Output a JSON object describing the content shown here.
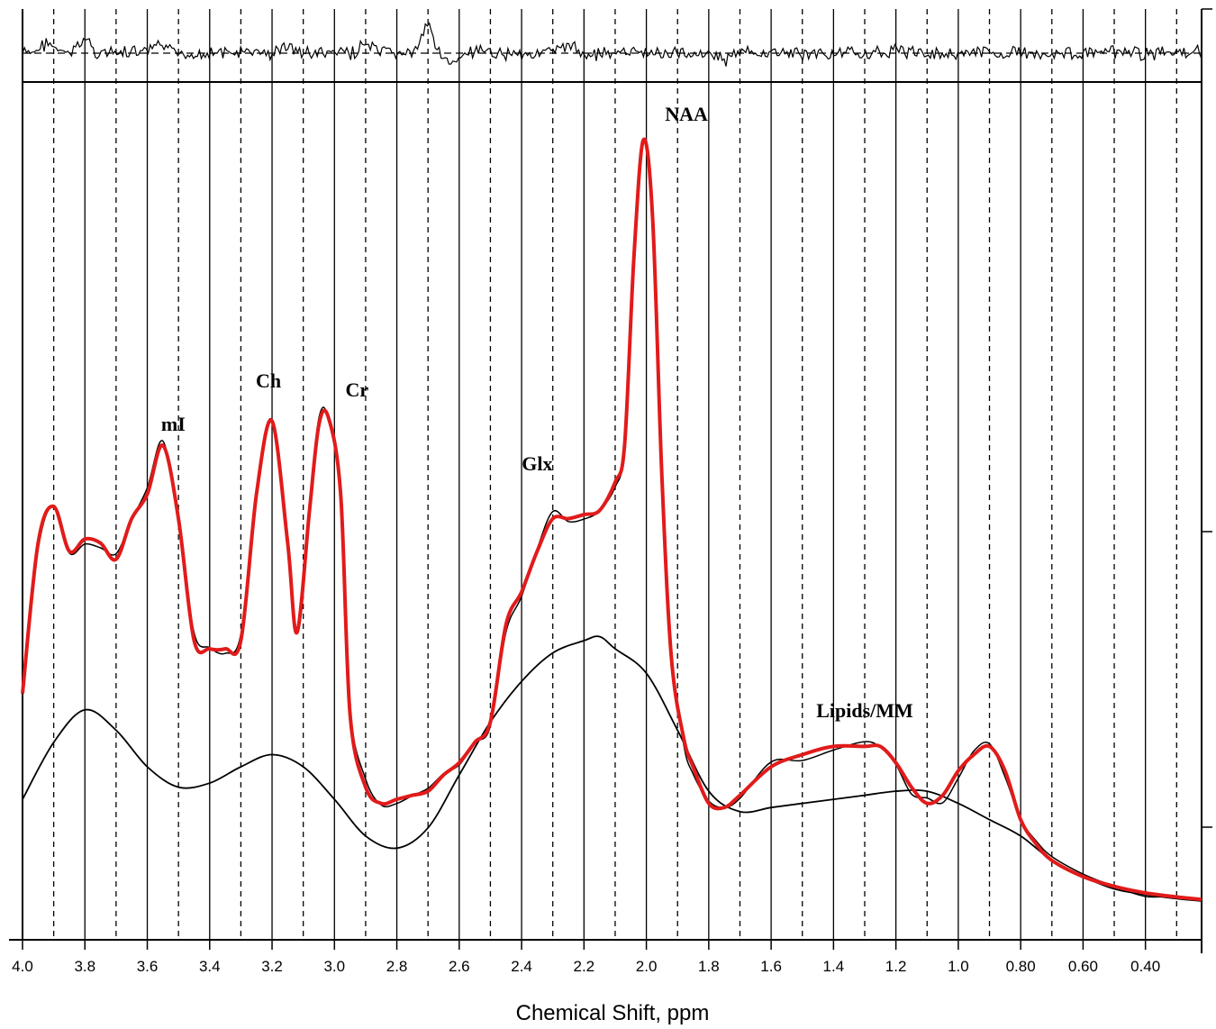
{
  "chart_data": {
    "type": "line",
    "title": "",
    "xlabel": "Chemical Shift, ppm",
    "ylabel": "",
    "xlim": [
      4.0,
      0.22
    ],
    "x_reversed": true,
    "grid": "vertical solid lines every 0.2 ppm, dashed lines at odd 0.1 ppm",
    "x_ticks": [
      4.0,
      3.8,
      3.6,
      3.4,
      3.2,
      3.0,
      2.8,
      2.6,
      2.4,
      2.2,
      2.0,
      1.8,
      1.6,
      1.4,
      1.2,
      1.0,
      0.8,
      0.6,
      0.4
    ],
    "x_tick_labels": [
      "4.0",
      "3.8",
      "3.6",
      "3.4",
      "3.2",
      "3.0",
      "2.8",
      "2.6",
      "2.4",
      "2.2",
      "2.0",
      "1.8",
      "1.6",
      "1.4",
      "1.2",
      "1.0",
      "0.80",
      "0.60",
      "0.40"
    ],
    "peak_labels": [
      {
        "text": "mI",
        "ppm": 3.56
      },
      {
        "text": "Ch",
        "ppm": 3.2
      },
      {
        "text": "Cr",
        "ppm": 3.02
      },
      {
        "text": "Glx",
        "ppm": 2.35
      },
      {
        "text": "NAA",
        "ppm": 2.01
      },
      {
        "text": "Lipids/MM",
        "ppm": 1.3
      }
    ],
    "series": [
      {
        "role": "fit",
        "color": "#e11b1b",
        "x": [
          4.0,
          3.95,
          3.9,
          3.85,
          3.8,
          3.75,
          3.7,
          3.65,
          3.6,
          3.55,
          3.5,
          3.45,
          3.4,
          3.35,
          3.3,
          3.25,
          3.2,
          3.15,
          3.12,
          3.08,
          3.05,
          3.02,
          2.98,
          2.95,
          2.9,
          2.85,
          2.8,
          2.75,
          2.7,
          2.65,
          2.6,
          2.55,
          2.5,
          2.45,
          2.4,
          2.35,
          2.3,
          2.25,
          2.2,
          2.15,
          2.1,
          2.07,
          2.04,
          2.01,
          1.98,
          1.95,
          1.92,
          1.88,
          1.85,
          1.8,
          1.75,
          1.7,
          1.6,
          1.5,
          1.4,
          1.3,
          1.25,
          1.2,
          1.15,
          1.1,
          1.05,
          1.0,
          0.95,
          0.9,
          0.85,
          0.8,
          0.75,
          0.7,
          0.6,
          0.5,
          0.4,
          0.3,
          0.22
        ],
        "y": [
          0.255,
          0.44,
          0.485,
          0.43,
          0.445,
          0.44,
          0.42,
          0.47,
          0.5,
          0.56,
          0.47,
          0.32,
          0.31,
          0.31,
          0.32,
          0.5,
          0.59,
          0.44,
          0.33,
          0.48,
          0.585,
          0.595,
          0.5,
          0.23,
          0.14,
          0.12,
          0.125,
          0.13,
          0.135,
          0.155,
          0.17,
          0.195,
          0.22,
          0.34,
          0.38,
          0.43,
          0.47,
          0.47,
          0.475,
          0.48,
          0.515,
          0.56,
          0.79,
          0.935,
          0.84,
          0.52,
          0.3,
          0.2,
          0.165,
          0.12,
          0.115,
          0.13,
          0.165,
          0.18,
          0.19,
          0.19,
          0.19,
          0.17,
          0.14,
          0.12,
          0.13,
          0.16,
          0.18,
          0.19,
          0.16,
          0.1,
          0.07,
          0.05,
          0.03,
          0.018,
          0.01,
          0.005,
          0.002
        ]
      },
      {
        "role": "baseline",
        "color": "#000000",
        "x": [
          4.0,
          3.9,
          3.8,
          3.7,
          3.6,
          3.5,
          3.4,
          3.3,
          3.2,
          3.1,
          3.0,
          2.9,
          2.8,
          2.7,
          2.6,
          2.5,
          2.4,
          2.3,
          2.2,
          2.15,
          2.1,
          2.0,
          1.9,
          1.8,
          1.7,
          1.6,
          1.5,
          1.4,
          1.3,
          1.2,
          1.1,
          1.0,
          0.9,
          0.8,
          0.7,
          0.6,
          0.5,
          0.4,
          0.3,
          0.22
        ],
        "y": [
          0.125,
          0.195,
          0.235,
          0.21,
          0.165,
          0.14,
          0.145,
          0.165,
          0.18,
          0.165,
          0.125,
          0.08,
          0.065,
          0.09,
          0.155,
          0.22,
          0.27,
          0.305,
          0.32,
          0.325,
          0.31,
          0.28,
          0.21,
          0.135,
          0.11,
          0.115,
          0.12,
          0.125,
          0.13,
          0.135,
          0.135,
          0.12,
          0.1,
          0.08,
          0.05,
          0.03,
          0.015,
          0.008,
          0.003,
          0.0
        ]
      }
    ],
    "residual": {
      "note": "noisy residual trace shown in the top panel around a dashed zero line"
    }
  },
  "colors": {
    "fit": "#e11b1b",
    "data": "#000000",
    "baseline": "#000000",
    "grid": "#000000"
  }
}
